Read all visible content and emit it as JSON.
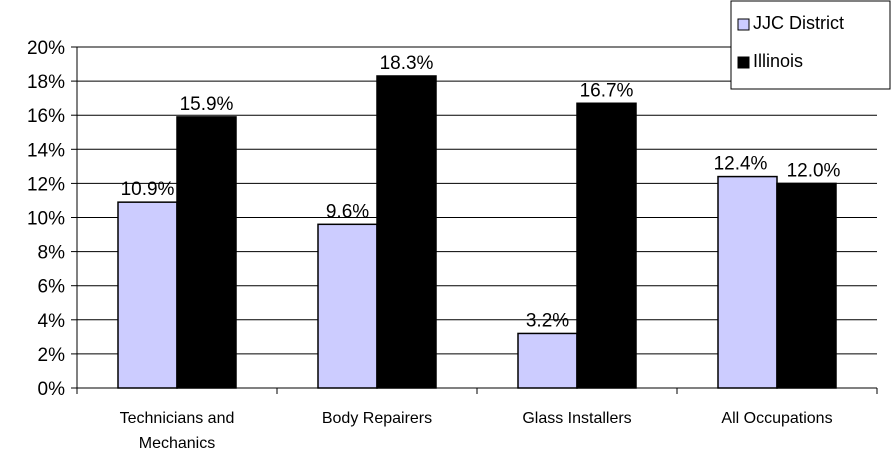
{
  "chart_data": {
    "type": "bar",
    "title": "",
    "xlabel": "",
    "ylabel": "",
    "categories": [
      [
        "Technicians and",
        "Mechanics"
      ],
      [
        "Body Repairers"
      ],
      [
        "Glass Installers"
      ],
      [
        "All Occupations"
      ]
    ],
    "series": [
      {
        "name": "JJC District",
        "color": "#ccccff",
        "values": [
          10.9,
          9.6,
          3.2,
          12.4
        ],
        "labels": [
          "10.9%",
          "9.6%",
          "3.2%",
          "12.4%"
        ]
      },
      {
        "name": "Illinois",
        "color": "#000000",
        "values": [
          15.9,
          18.3,
          16.7,
          12.0
        ],
        "labels": [
          "15.9%",
          "18.3%",
          "16.7%",
          "12.0%"
        ]
      }
    ],
    "ylim": [
      0,
      20
    ],
    "yticks": [
      0,
      2,
      4,
      6,
      8,
      10,
      12,
      14,
      16,
      18,
      20
    ],
    "ytick_labels": [
      "0%",
      "2%",
      "4%",
      "6%",
      "8%",
      "10%",
      "12%",
      "14%",
      "16%",
      "18%",
      "20%"
    ],
    "grid": true,
    "legend": "top-right"
  }
}
